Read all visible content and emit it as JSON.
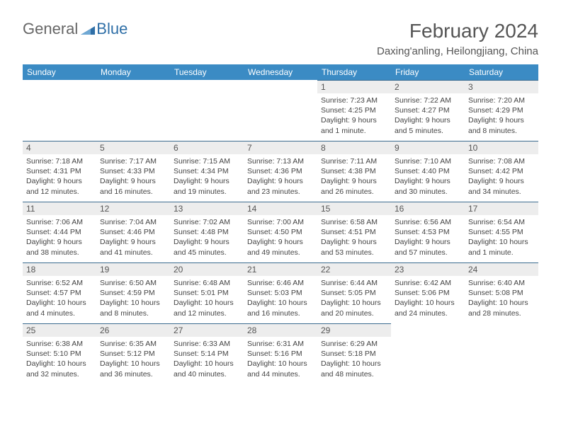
{
  "logo": {
    "text1": "General",
    "text2": "Blue",
    "mark_color": "#2f6fa7"
  },
  "title": "February 2024",
  "location": "Daxing'anling, Heilongjiang, China",
  "header_bg": "#3b8bc4",
  "daynum_bg": "#ededed",
  "border_color": "#3b6b8f",
  "weekdays": [
    "Sunday",
    "Monday",
    "Tuesday",
    "Wednesday",
    "Thursday",
    "Friday",
    "Saturday"
  ],
  "weeks": [
    [
      null,
      null,
      null,
      null,
      {
        "n": "1",
        "sr": "Sunrise: 7:23 AM",
        "ss": "Sunset: 4:25 PM",
        "dl": "Daylight: 9 hours and 1 minute."
      },
      {
        "n": "2",
        "sr": "Sunrise: 7:22 AM",
        "ss": "Sunset: 4:27 PM",
        "dl": "Daylight: 9 hours and 5 minutes."
      },
      {
        "n": "3",
        "sr": "Sunrise: 7:20 AM",
        "ss": "Sunset: 4:29 PM",
        "dl": "Daylight: 9 hours and 8 minutes."
      }
    ],
    [
      {
        "n": "4",
        "sr": "Sunrise: 7:18 AM",
        "ss": "Sunset: 4:31 PM",
        "dl": "Daylight: 9 hours and 12 minutes."
      },
      {
        "n": "5",
        "sr": "Sunrise: 7:17 AM",
        "ss": "Sunset: 4:33 PM",
        "dl": "Daylight: 9 hours and 16 minutes."
      },
      {
        "n": "6",
        "sr": "Sunrise: 7:15 AM",
        "ss": "Sunset: 4:34 PM",
        "dl": "Daylight: 9 hours and 19 minutes."
      },
      {
        "n": "7",
        "sr": "Sunrise: 7:13 AM",
        "ss": "Sunset: 4:36 PM",
        "dl": "Daylight: 9 hours and 23 minutes."
      },
      {
        "n": "8",
        "sr": "Sunrise: 7:11 AM",
        "ss": "Sunset: 4:38 PM",
        "dl": "Daylight: 9 hours and 26 minutes."
      },
      {
        "n": "9",
        "sr": "Sunrise: 7:10 AM",
        "ss": "Sunset: 4:40 PM",
        "dl": "Daylight: 9 hours and 30 minutes."
      },
      {
        "n": "10",
        "sr": "Sunrise: 7:08 AM",
        "ss": "Sunset: 4:42 PM",
        "dl": "Daylight: 9 hours and 34 minutes."
      }
    ],
    [
      {
        "n": "11",
        "sr": "Sunrise: 7:06 AM",
        "ss": "Sunset: 4:44 PM",
        "dl": "Daylight: 9 hours and 38 minutes."
      },
      {
        "n": "12",
        "sr": "Sunrise: 7:04 AM",
        "ss": "Sunset: 4:46 PM",
        "dl": "Daylight: 9 hours and 41 minutes."
      },
      {
        "n": "13",
        "sr": "Sunrise: 7:02 AM",
        "ss": "Sunset: 4:48 PM",
        "dl": "Daylight: 9 hours and 45 minutes."
      },
      {
        "n": "14",
        "sr": "Sunrise: 7:00 AM",
        "ss": "Sunset: 4:50 PM",
        "dl": "Daylight: 9 hours and 49 minutes."
      },
      {
        "n": "15",
        "sr": "Sunrise: 6:58 AM",
        "ss": "Sunset: 4:51 PM",
        "dl": "Daylight: 9 hours and 53 minutes."
      },
      {
        "n": "16",
        "sr": "Sunrise: 6:56 AM",
        "ss": "Sunset: 4:53 PM",
        "dl": "Daylight: 9 hours and 57 minutes."
      },
      {
        "n": "17",
        "sr": "Sunrise: 6:54 AM",
        "ss": "Sunset: 4:55 PM",
        "dl": "Daylight: 10 hours and 1 minute."
      }
    ],
    [
      {
        "n": "18",
        "sr": "Sunrise: 6:52 AM",
        "ss": "Sunset: 4:57 PM",
        "dl": "Daylight: 10 hours and 4 minutes."
      },
      {
        "n": "19",
        "sr": "Sunrise: 6:50 AM",
        "ss": "Sunset: 4:59 PM",
        "dl": "Daylight: 10 hours and 8 minutes."
      },
      {
        "n": "20",
        "sr": "Sunrise: 6:48 AM",
        "ss": "Sunset: 5:01 PM",
        "dl": "Daylight: 10 hours and 12 minutes."
      },
      {
        "n": "21",
        "sr": "Sunrise: 6:46 AM",
        "ss": "Sunset: 5:03 PM",
        "dl": "Daylight: 10 hours and 16 minutes."
      },
      {
        "n": "22",
        "sr": "Sunrise: 6:44 AM",
        "ss": "Sunset: 5:05 PM",
        "dl": "Daylight: 10 hours and 20 minutes."
      },
      {
        "n": "23",
        "sr": "Sunrise: 6:42 AM",
        "ss": "Sunset: 5:06 PM",
        "dl": "Daylight: 10 hours and 24 minutes."
      },
      {
        "n": "24",
        "sr": "Sunrise: 6:40 AM",
        "ss": "Sunset: 5:08 PM",
        "dl": "Daylight: 10 hours and 28 minutes."
      }
    ],
    [
      {
        "n": "25",
        "sr": "Sunrise: 6:38 AM",
        "ss": "Sunset: 5:10 PM",
        "dl": "Daylight: 10 hours and 32 minutes."
      },
      {
        "n": "26",
        "sr": "Sunrise: 6:35 AM",
        "ss": "Sunset: 5:12 PM",
        "dl": "Daylight: 10 hours and 36 minutes."
      },
      {
        "n": "27",
        "sr": "Sunrise: 6:33 AM",
        "ss": "Sunset: 5:14 PM",
        "dl": "Daylight: 10 hours and 40 minutes."
      },
      {
        "n": "28",
        "sr": "Sunrise: 6:31 AM",
        "ss": "Sunset: 5:16 PM",
        "dl": "Daylight: 10 hours and 44 minutes."
      },
      {
        "n": "29",
        "sr": "Sunrise: 6:29 AM",
        "ss": "Sunset: 5:18 PM",
        "dl": "Daylight: 10 hours and 48 minutes."
      },
      null,
      null
    ]
  ]
}
